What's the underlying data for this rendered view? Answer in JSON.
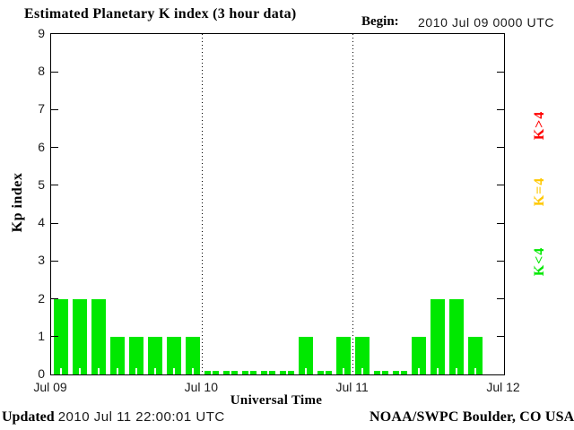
{
  "header": {
    "title": "Estimated Planetary K index (3 hour data)",
    "begin_label": "Begin:",
    "begin_value": "2010 Jul 09 0000 UTC"
  },
  "y_axis": {
    "label": "Kp index",
    "ticks": [
      "0",
      "1",
      "2",
      "3",
      "4",
      "5",
      "6",
      "7",
      "8",
      "9"
    ]
  },
  "x_axis": {
    "label": "Universal Time",
    "ticks": [
      "Jul 09",
      "Jul 10",
      "Jul 11",
      "Jul 12"
    ]
  },
  "legend": [
    {
      "label": "K>4",
      "color": "#ff0000"
    },
    {
      "label": "K=4",
      "color": "#ffc800"
    },
    {
      "label": "K<4",
      "color": "#00e800"
    }
  ],
  "footer": {
    "updated_label": "Updated",
    "updated_value": "2010 Jul 11 22:00:01 UTC",
    "credit": "NOAA/SWPC Boulder, CO USA"
  },
  "chart_data": {
    "type": "bar",
    "title": "Estimated Planetary K index (3 hour data)",
    "xlabel": "Universal Time",
    "ylabel": "Kp index",
    "begin": "2010 Jul 09 0000 UTC",
    "bin_hours": 3,
    "ylim": [
      0,
      9
    ],
    "y_ticks": [
      0,
      1,
      2,
      3,
      4,
      5,
      6,
      7,
      8,
      9
    ],
    "x_tick_labels": [
      "Jul 09",
      "Jul 10",
      "Jul 11",
      "Jul 12"
    ],
    "values": [
      2,
      2,
      2,
      1,
      1,
      1,
      1,
      1,
      0,
      0,
      0,
      0,
      0,
      1,
      0,
      1,
      1,
      0,
      0,
      1,
      2,
      2,
      1,
      null
    ],
    "values_by_day": {
      "Jul 09": [
        2,
        2,
        2,
        1,
        1,
        1,
        1,
        1
      ],
      "Jul 10": [
        0,
        0,
        0,
        0,
        0,
        1,
        0,
        1
      ],
      "Jul 11": [
        1,
        0,
        0,
        1,
        2,
        2,
        1,
        null
      ]
    },
    "bar_color": "#00e800",
    "color_rules": {
      "K<4": "#00e800",
      "K=4": "#ffc800",
      "K>4": "#ff0000"
    },
    "gridlines": "vertical dotted lines at day boundaries Jul 10 and Jul 11",
    "legend_position": "right",
    "legend_entries": [
      "K>4",
      "K=4",
      "K<4"
    ]
  }
}
